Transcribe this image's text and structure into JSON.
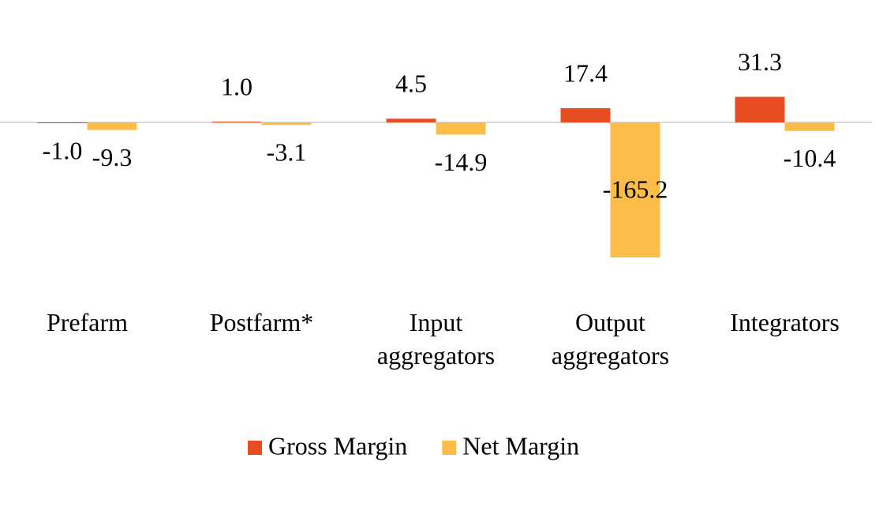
{
  "chart_data": {
    "type": "bar",
    "categories": [
      "Prefarm",
      "Postfarm*",
      "Input aggregators",
      "Output aggregators",
      "Integrators"
    ],
    "series": [
      {
        "name": "Gross Margin",
        "color": "#e84c22",
        "values": [
          -1.0,
          1.0,
          4.5,
          17.4,
          31.3
        ],
        "value_labels": [
          "-1.0",
          "1.0",
          "4.5",
          "17.4",
          "31.3"
        ]
      },
      {
        "name": "Net Margin",
        "color": "#fbbd47",
        "values": [
          -9.3,
          -3.1,
          -14.9,
          -165.2,
          -10.4
        ],
        "value_labels": [
          "-9.3",
          "-3.1",
          "-14.9",
          "-165.2",
          "-10.4"
        ]
      }
    ],
    "legend": "bottom"
  }
}
